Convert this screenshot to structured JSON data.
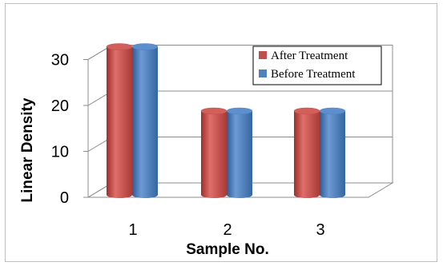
{
  "chart_data": {
    "type": "bar",
    "categories": [
      "1",
      "2",
      "3"
    ],
    "series": [
      {
        "name": "After Treatment",
        "values": [
          30,
          16,
          16
        ],
        "color": "#c0504d"
      },
      {
        "name": "Before Treatment",
        "values": [
          30,
          16,
          16
        ],
        "color": "#4f81bd"
      }
    ],
    "xlabel": "Sample No.",
    "ylabel": "Linear Density",
    "ylim": [
      0,
      30
    ],
    "yticks": [
      0,
      10,
      20,
      30
    ],
    "grid": true,
    "three_d": true,
    "legend_position": "top-right"
  }
}
